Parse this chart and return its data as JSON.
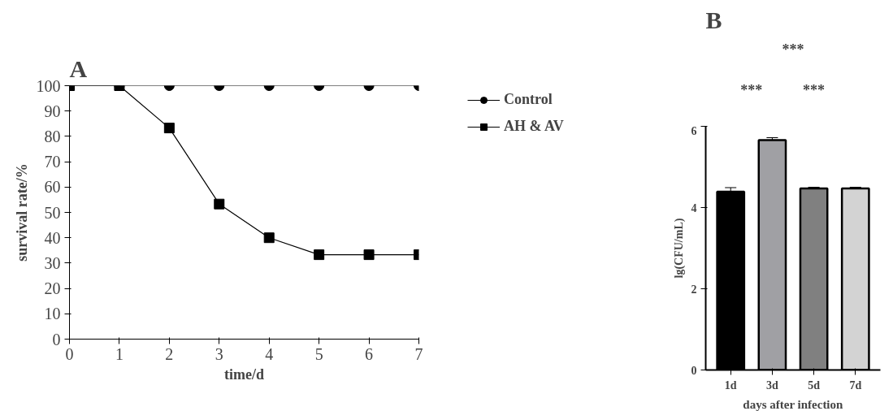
{
  "chart_data": [
    {
      "type": "line",
      "title": "A",
      "xlabel": "time/d",
      "ylabel": "survival rate/%",
      "x": [
        0,
        1,
        2,
        3,
        4,
        5,
        6,
        7
      ],
      "series": [
        {
          "name": "Control",
          "color": "#000000",
          "marker": "circle",
          "values": [
            100,
            100,
            100,
            100,
            100,
            100,
            100,
            100
          ]
        },
        {
          "name": "AH & AV",
          "color": "#000000",
          "marker": "square",
          "values": [
            100,
            100,
            83.3,
            53.3,
            40,
            33.3,
            33.3,
            33.3
          ]
        }
      ],
      "xlim": [
        0,
        7
      ],
      "xticks": [
        0,
        1,
        2,
        3,
        4,
        5,
        6,
        7
      ],
      "ylim": [
        0,
        100
      ],
      "yticks": [
        0,
        10,
        20,
        30,
        40,
        50,
        60,
        70,
        80,
        90,
        100
      ],
      "grid": false,
      "legend": "right",
      "line_style": "solid"
    },
    {
      "type": "bar",
      "title": "B",
      "xlabel": "days after infection",
      "ylabel": "lg(CFU/mL)",
      "categories": [
        "1d",
        "3d",
        "5d",
        "7d"
      ],
      "values": [
        4.39,
        5.66,
        4.47,
        4.47
      ],
      "errors": [
        0.1,
        0.06,
        0.03,
        0.03
      ],
      "colors": [
        "#000000",
        "#a0a0a4",
        "#808080",
        "#d3d3d3"
      ],
      "ylim": [
        0,
        6
      ],
      "yticks": [
        0,
        2,
        4,
        6
      ],
      "grid": false,
      "annotations": [
        "***",
        "***",
        "***"
      ]
    }
  ]
}
